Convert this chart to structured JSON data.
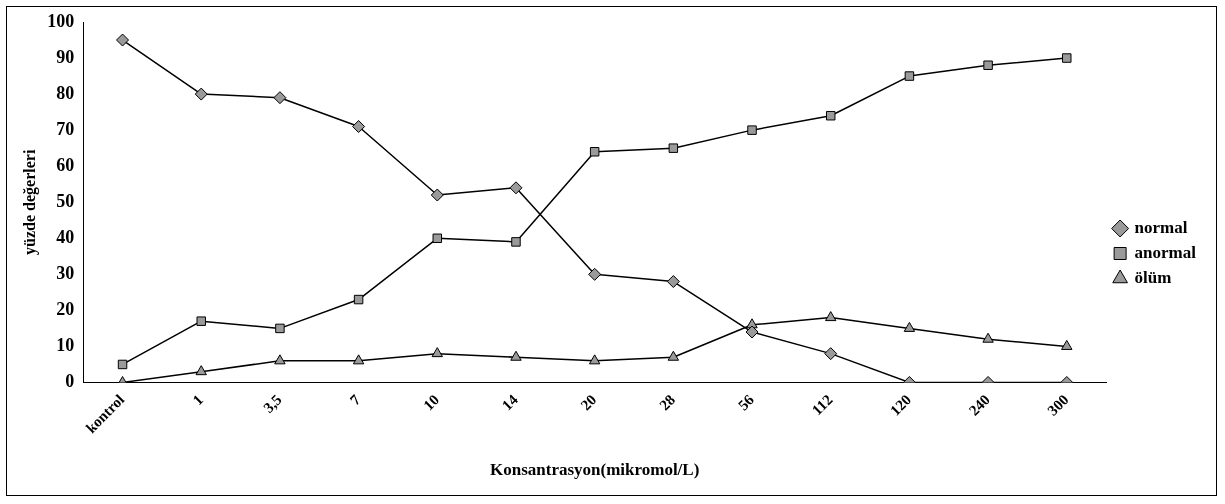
{
  "chart_data": {
    "type": "line",
    "xlabel": "Konsantrasyon(mikromol/L)",
    "ylabel": "yüzde değerleri",
    "categories": [
      "kontrol",
      "1",
      "3,5",
      "7",
      "10",
      "14",
      "20",
      "28",
      "56",
      "112",
      "120",
      "240",
      "300"
    ],
    "series": [
      {
        "name": "normal",
        "color": "#000000",
        "marker": "diamond",
        "values": [
          95,
          80,
          79,
          71,
          52,
          54,
          30,
          28,
          14,
          8,
          0,
          0,
          0
        ]
      },
      {
        "name": "anormal",
        "color": "#000000",
        "marker": "square",
        "values": [
          5,
          17,
          15,
          23,
          40,
          39,
          64,
          65,
          70,
          74,
          85,
          88,
          90
        ]
      },
      {
        "name": "ölüm",
        "color": "#000000",
        "marker": "triangle",
        "values": [
          0,
          3,
          6,
          6,
          8,
          7,
          6,
          7,
          16,
          18,
          15,
          12,
          10
        ]
      }
    ],
    "ylim": [
      0,
      100
    ],
    "yticks": [
      0,
      10,
      20,
      30,
      40,
      50,
      60,
      70,
      80,
      90,
      100
    ],
    "grid": false,
    "legend": "right",
    "line_style": "solid"
  }
}
